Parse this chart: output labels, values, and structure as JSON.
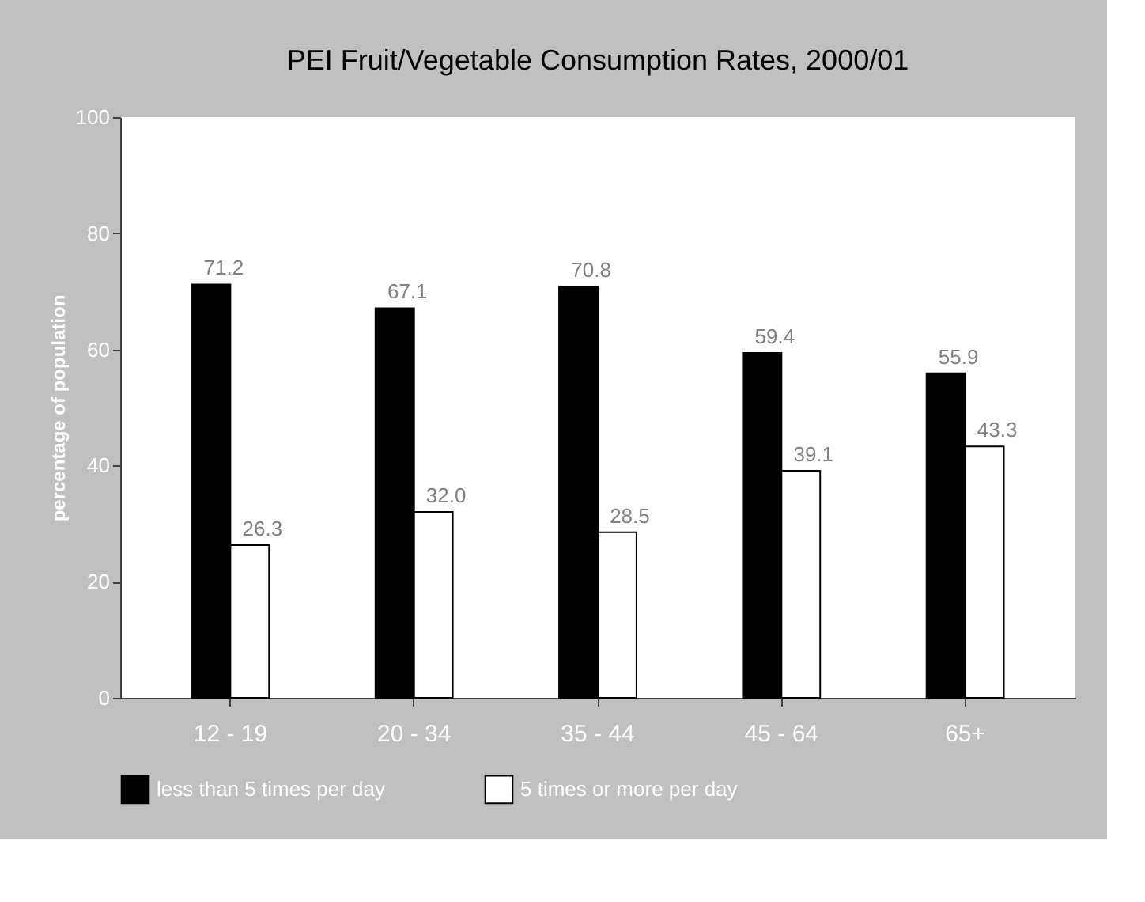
{
  "chart_data": {
    "type": "bar",
    "title": "PEI Fruit/Vegetable Consumption Rates, 2000/01",
    "ylabel": "percentage of population",
    "categories": [
      "12 - 19",
      "20 - 34",
      "35 - 44",
      "45 - 64",
      "65+"
    ],
    "series": [
      {
        "name": "less than 5 times per day",
        "color": "#000000",
        "values": [
          71.2,
          67.1,
          70.8,
          59.4,
          55.9
        ],
        "value_labels": [
          "71.2",
          "67.1",
          "70.8",
          "59.4",
          "55.9"
        ]
      },
      {
        "name": "5 times or more per day",
        "color": "#ffffff",
        "values": [
          26.3,
          32.0,
          28.5,
          39.1,
          43.3
        ],
        "value_labels": [
          "26.3",
          "32.0",
          "28.5",
          "39.1",
          "43.3"
        ]
      }
    ],
    "ylim": [
      0,
      100
    ],
    "yticks": [
      0,
      20,
      40,
      60,
      80,
      100
    ],
    "grid": false,
    "legend": "bottom"
  }
}
